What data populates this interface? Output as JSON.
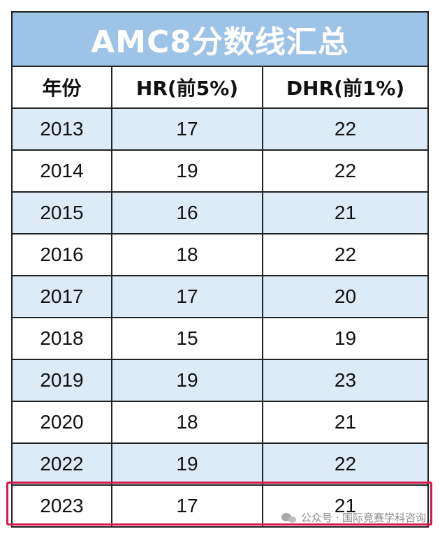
{
  "title": "AMC8分数线汇总",
  "headers": [
    "年份",
    "HR(前5%)",
    "DHR(前1%)"
  ],
  "rows": [
    [
      "2013",
      "17",
      "22"
    ],
    [
      "2014",
      "19",
      "22"
    ],
    [
      "2015",
      "16",
      "21"
    ],
    [
      "2016",
      "18",
      "22"
    ],
    [
      "2017",
      "17",
      "20"
    ],
    [
      "2018",
      "15",
      "19"
    ],
    [
      "2019",
      "19",
      "23"
    ],
    [
      "2020",
      "18",
      "21"
    ],
    [
      "2022",
      "19",
      "22"
    ],
    [
      "2023",
      "17",
      "21"
    ]
  ],
  "watermark": "公众号 · 国际竞赛学科咨询",
  "colors": {
    "title_bg": "#9dc3e6",
    "shaded_row": "#ddebf7",
    "highlight_border": "#d6194c"
  }
}
